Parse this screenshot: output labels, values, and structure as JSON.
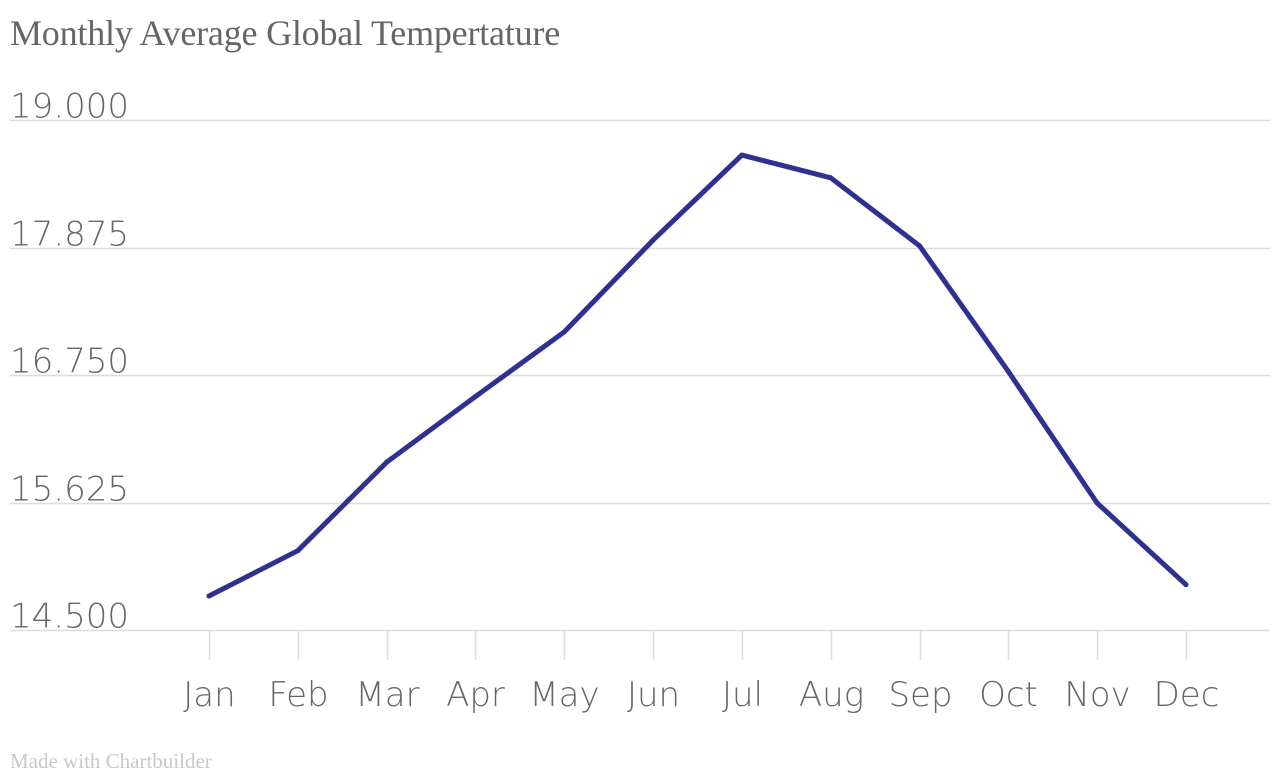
{
  "chart_data": {
    "type": "line",
    "title": "Monthly Average Global Tempertature",
    "xlabel": "",
    "ylabel": "",
    "categories": [
      "Jan",
      "Feb",
      "Mar",
      "Apr",
      "May",
      "Jun",
      "Jul",
      "Aug",
      "Sep",
      "Oct",
      "Nov",
      "Dec"
    ],
    "series": [
      {
        "values": [
          14.8,
          15.2,
          15.98,
          16.56,
          17.13,
          17.94,
          18.69,
          18.49,
          17.89,
          16.78,
          15.62,
          14.9
        ]
      }
    ],
    "yticks": [
      "14.500",
      "15.625",
      "16.750",
      "17.875",
      "19.000"
    ],
    "ytick_values": [
      14.5,
      15.625,
      16.75,
      17.875,
      19.0
    ],
    "ylim": [
      14.5,
      19.0
    ],
    "grid": true,
    "legend": "none",
    "line_color": "#2e3191",
    "grid_color": "#dddddd",
    "text_color": "#666666"
  },
  "footer": {
    "credit": "Made with Chartbuilder"
  }
}
